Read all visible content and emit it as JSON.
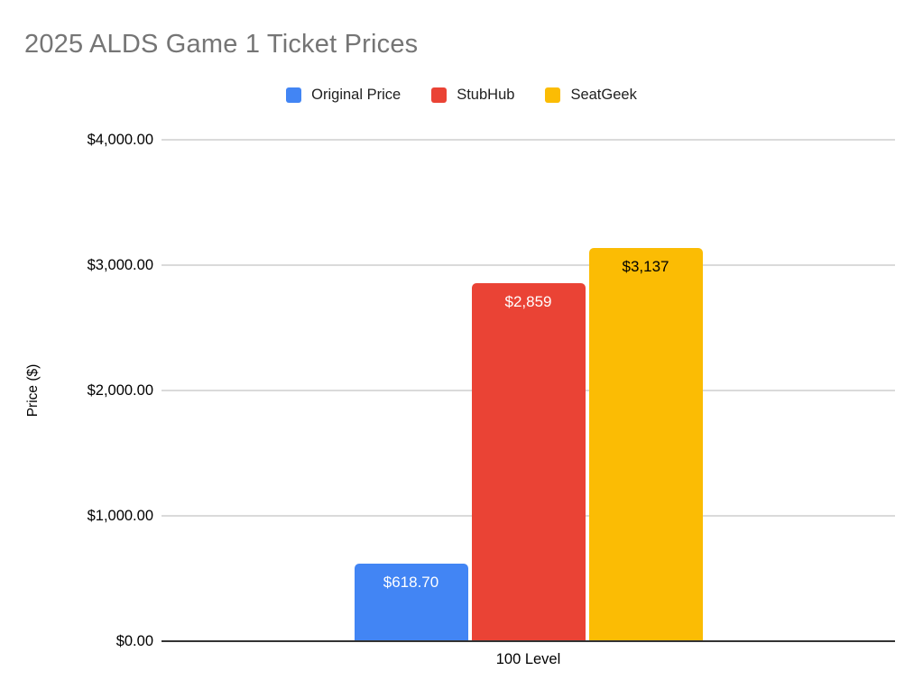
{
  "chart_data": {
    "type": "bar",
    "title": "2025 ALDS Game 1 Ticket Prices",
    "title_color": "#757575",
    "ylabel": "Price ($)",
    "xlabel": "",
    "categories": [
      "100 Level"
    ],
    "series": [
      {
        "name": "Original Price",
        "values": [
          618.7
        ],
        "color": "#4285F4",
        "data_label": "$618.70",
        "data_label_color": "#FFFFFF"
      },
      {
        "name": "StubHub",
        "values": [
          2859
        ],
        "color": "#EA4335",
        "data_label": "$2,859",
        "data_label_color": "#FFFFFF"
      },
      {
        "name": "SeatGeek",
        "values": [
          3137
        ],
        "color": "#FBBC04",
        "data_label": "$3,137",
        "data_label_color": "#000000"
      }
    ],
    "ylim": [
      0,
      4000
    ],
    "yticks": [
      {
        "value": 0,
        "label": "$0.00"
      },
      {
        "value": 1000,
        "label": "$1,000.00"
      },
      {
        "value": 2000,
        "label": "$2,000.00"
      },
      {
        "value": 3000,
        "label": "$3,000.00"
      },
      {
        "value": 4000,
        "label": "$4,000.00"
      }
    ],
    "grid": true,
    "gridline_color": "#DADADA",
    "legend_position": "top",
    "background": "#FFFFFF"
  }
}
